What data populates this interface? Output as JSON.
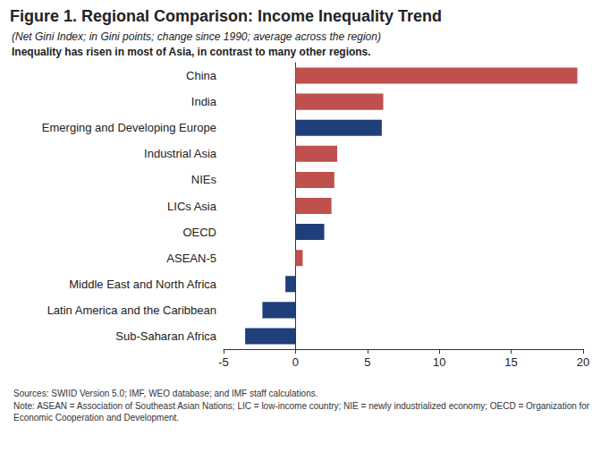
{
  "chart_data": {
    "type": "bar",
    "orientation": "horizontal",
    "title": "Figure 1. Regional Comparison: Income Inequality Trend",
    "subtitle": [
      "(Net Gini Index; in Gini points; change since 1990; average across the region)",
      "Inequality has risen in most of Asia, in contrast to many other regions."
    ],
    "annotations": [
      "Sources: SWIID Version 5.0; IMF, WEO database; and IMF staff calculations.",
      "Note: ASEAN = Association of Southeast Asian Nations; LIC = low-income country; NIE = newly industrialized economy; OECD = Organization for Economic Cooperation and Development."
    ],
    "categories": [
      "Sub-Saharan Africa",
      "Latin America and the Caribbean",
      "Middle East and North Africa",
      "ASEAN-5",
      "OECD",
      "LICs Asia",
      "NIEs",
      "Industrial Asia",
      "Emerging and Developing Europe",
      "India",
      "China"
    ],
    "values": [
      -3.5,
      -2.3,
      -0.7,
      0.5,
      2.0,
      2.5,
      2.7,
      2.9,
      6.0,
      6.1,
      19.6
    ],
    "colors": [
      "#1f3f7a",
      "#1f3f7a",
      "#1f3f7a",
      "#c0504d",
      "#1f3f7a",
      "#c0504d",
      "#c0504d",
      "#c0504d",
      "#1f3f7a",
      "#c0504d",
      "#c0504d"
    ],
    "xlim": [
      -5,
      20
    ],
    "xticks": [
      -5,
      0,
      5,
      10,
      15,
      20
    ],
    "grid": false
  }
}
